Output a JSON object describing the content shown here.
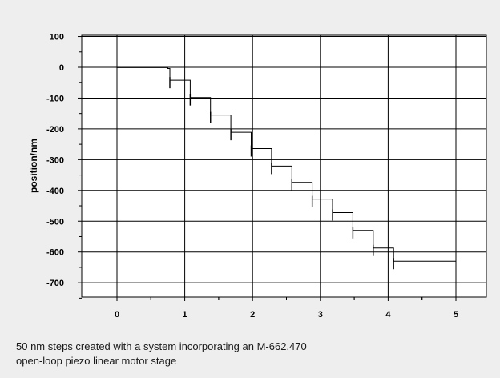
{
  "chart_data": {
    "type": "line",
    "title": "",
    "xlabel": "",
    "ylabel": "position/nm",
    "xlim": [
      -0.5,
      5.4
    ],
    "ylim": [
      -760,
      100
    ],
    "grid": true,
    "x_ticks": [
      0,
      1,
      2,
      3,
      4,
      5
    ],
    "y_ticks": [
      100,
      0,
      -100,
      -200,
      -300,
      -400,
      -500,
      -600,
      -700
    ],
    "series": [
      {
        "name": "",
        "color": "#000000",
        "x": [
          0,
          0.75,
          0.78,
          1.08,
          1.38,
          1.68,
          1.98,
          2.28,
          2.58,
          2.88,
          3.18,
          3.48,
          3.78,
          4.08,
          5.0
        ],
        "y": [
          -1,
          -4,
          -42,
          -98,
          -155,
          -211,
          -264,
          -321,
          -374,
          -428,
          -472,
          -530,
          -587,
          -630,
          -635
        ]
      }
    ]
  },
  "caption": {
    "line1": "50 nm steps created with a system incorporating an M-662.470",
    "line2": "open-loop piezo linear motor stage"
  }
}
